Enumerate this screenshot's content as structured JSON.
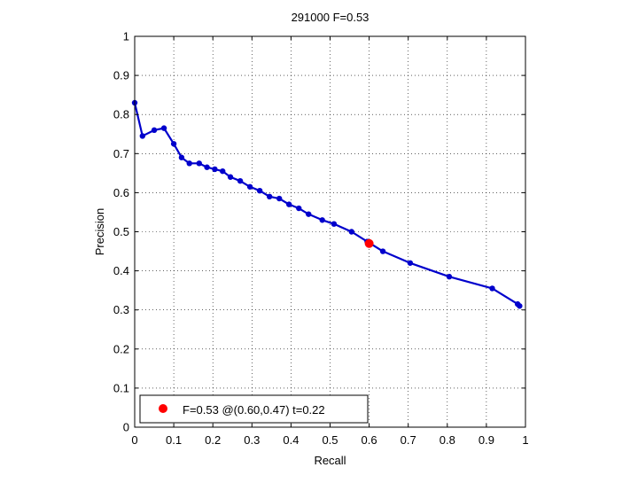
{
  "chart_data": {
    "type": "line",
    "title": "291000 F=0.53",
    "xlabel": "Recall",
    "ylabel": "Precision",
    "xlim": [
      0,
      1
    ],
    "ylim": [
      0,
      1
    ],
    "grid": true,
    "xticks": [
      "0",
      "0.1",
      "0.2",
      "0.3",
      "0.4",
      "0.5",
      "0.6",
      "0.7",
      "0.8",
      "0.9",
      "1"
    ],
    "yticks": [
      "0",
      "0.1",
      "0.2",
      "0.3",
      "0.4",
      "0.5",
      "0.6",
      "0.7",
      "0.8",
      "0.9",
      "1"
    ],
    "series": [
      {
        "color": "#0000cc",
        "x": [
          0.0,
          0.02,
          0.05,
          0.075,
          0.1,
          0.12,
          0.14,
          0.165,
          0.185,
          0.205,
          0.225,
          0.245,
          0.27,
          0.295,
          0.32,
          0.345,
          0.37,
          0.395,
          0.42,
          0.445,
          0.48,
          0.51,
          0.555,
          0.595,
          0.635,
          0.705,
          0.805,
          0.915,
          0.98,
          0.985
        ],
        "y": [
          0.83,
          0.745,
          0.76,
          0.765,
          0.725,
          0.69,
          0.675,
          0.675,
          0.665,
          0.66,
          0.655,
          0.64,
          0.63,
          0.615,
          0.605,
          0.59,
          0.585,
          0.57,
          0.56,
          0.545,
          0.53,
          0.52,
          0.5,
          0.475,
          0.45,
          0.42,
          0.385,
          0.355,
          0.315,
          0.31
        ]
      }
    ],
    "highlight_point": {
      "x": 0.6,
      "y": 0.47,
      "color": "#ff0000"
    },
    "legend": {
      "position": "bottom-left",
      "label": "F=0.53 @(0.60,0.47) t=0.22"
    }
  }
}
